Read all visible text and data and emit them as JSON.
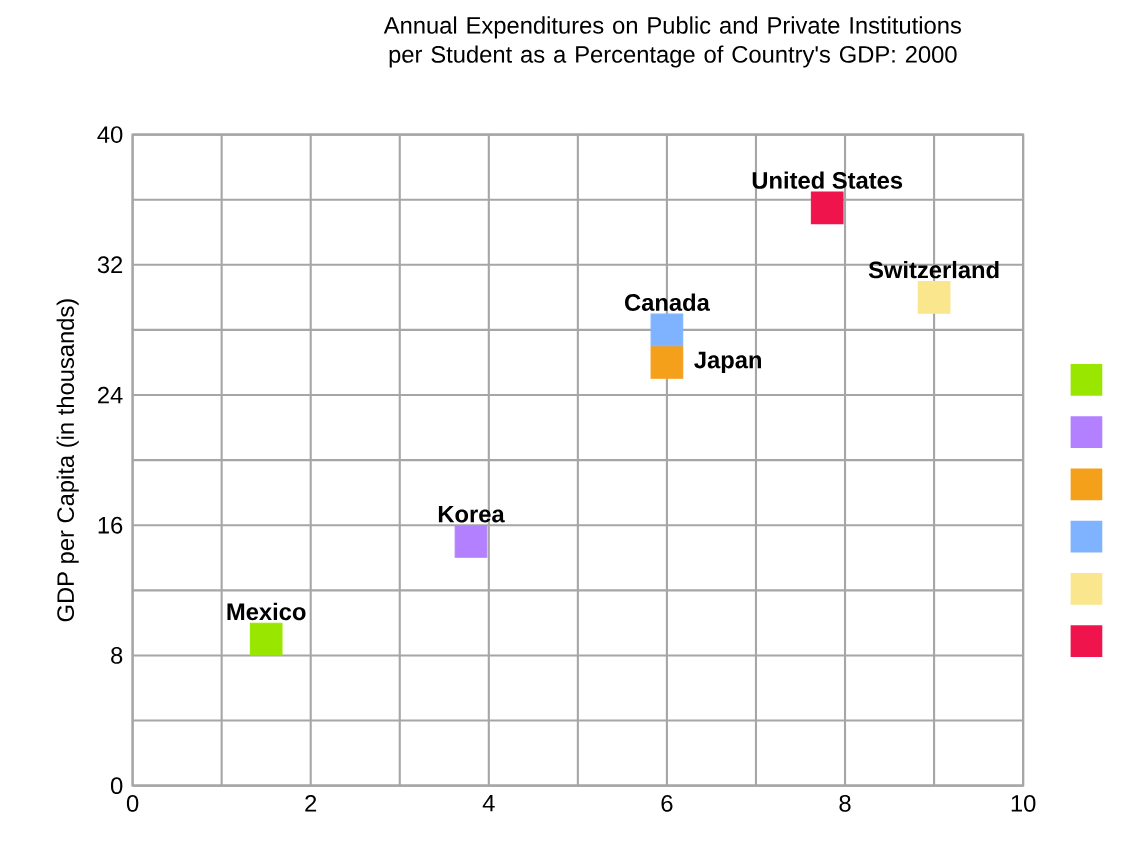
{
  "chart_data": {
    "type": "scatter",
    "title": "Annual Expenditures on Public and Private Institutions per Student as a Percentage of Country's GDP: 2000",
    "ylabel": "GDP per Capita (in thousands)",
    "xlim": [
      0,
      10
    ],
    "ylim": [
      0,
      40
    ],
    "xticks": [
      0,
      {
        "value": 1,
        "label": null
      },
      2,
      {
        "value": 3,
        "label": null
      },
      4,
      {
        "value": 5,
        "label": null
      },
      6,
      {
        "value": 7,
        "label": null
      },
      8,
      {
        "value": 9,
        "label": null
      },
      10
    ],
    "yticks": [
      0,
      {
        "value": 4,
        "label": null
      },
      8,
      {
        "value": 12,
        "label": null
      },
      16,
      {
        "value": 20,
        "label": null
      },
      24,
      {
        "value": 28,
        "label": null
      },
      32,
      {
        "value": 36,
        "label": null
      },
      40
    ],
    "grid": true,
    "marker": "square",
    "legend": "right",
    "series": [
      {
        "name": "Mexico",
        "color": "#99e600",
        "x": [
          1.5
        ],
        "values": [
          9
        ]
      },
      {
        "name": "Korea",
        "color": "#b380ff",
        "x": [
          3.8
        ],
        "values": [
          15
        ]
      },
      {
        "name": "Japan",
        "color": "#f5a01a",
        "x": [
          6
        ],
        "values": [
          26
        ]
      },
      {
        "name": "Canada",
        "color": "#80b3ff",
        "x": [
          6
        ],
        "values": [
          28
        ]
      },
      {
        "name": "Switzerland",
        "color": "#fae68c",
        "x": [
          9
        ],
        "values": [
          30
        ]
      },
      {
        "name": "United States",
        "color": "#f0144d",
        "x": [
          7.8
        ],
        "values": [
          35.5
        ]
      }
    ]
  }
}
